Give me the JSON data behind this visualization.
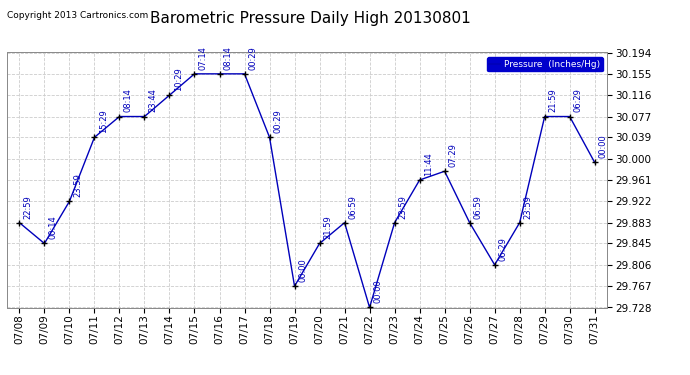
{
  "title": "Barometric Pressure Daily High 20130801",
  "copyright": "Copyright 2013 Cartronics.com",
  "legend_label": "Pressure  (Inches/Hg)",
  "dates": [
    "07/08",
    "07/09",
    "07/10",
    "07/11",
    "07/12",
    "07/13",
    "07/14",
    "07/15",
    "07/16",
    "07/17",
    "07/18",
    "07/19",
    "07/20",
    "07/21",
    "07/22",
    "07/23",
    "07/24",
    "07/25",
    "07/26",
    "07/27",
    "07/28",
    "07/29",
    "07/30",
    "07/31"
  ],
  "values": [
    29.883,
    29.845,
    29.922,
    30.039,
    30.077,
    30.077,
    30.116,
    30.155,
    30.155,
    30.155,
    30.039,
    29.767,
    29.845,
    29.883,
    29.728,
    29.883,
    29.961,
    29.977,
    29.883,
    29.806,
    29.883,
    30.077,
    30.077,
    29.993
  ],
  "annotations": [
    "22:59",
    "00:14",
    "23:59",
    "15:29",
    "08:14",
    "23:44",
    "10:29",
    "07:14",
    "08:14",
    "00:29",
    "00:29",
    "00:00",
    "21:59",
    "06:59",
    "00:00",
    "23:59",
    "11:44",
    "07:29",
    "06:59",
    "06:29",
    "23:59",
    "21:59",
    "06:29",
    "00:00"
  ],
  "line_color": "#0000bb",
  "marker_color": "#000000",
  "background_color": "#ffffff",
  "grid_color": "#cccccc",
  "legend_bg": "#0000cc",
  "legend_text_color": "#ffffff",
  "ylim_min": 29.728,
  "ylim_max": 30.194,
  "yticks": [
    29.728,
    29.767,
    29.806,
    29.845,
    29.883,
    29.922,
    29.961,
    30.0,
    30.039,
    30.077,
    30.116,
    30.155,
    30.194
  ],
  "title_fontsize": 11,
  "annotation_fontsize": 6,
  "tick_fontsize": 7.5,
  "copyright_fontsize": 6.5
}
